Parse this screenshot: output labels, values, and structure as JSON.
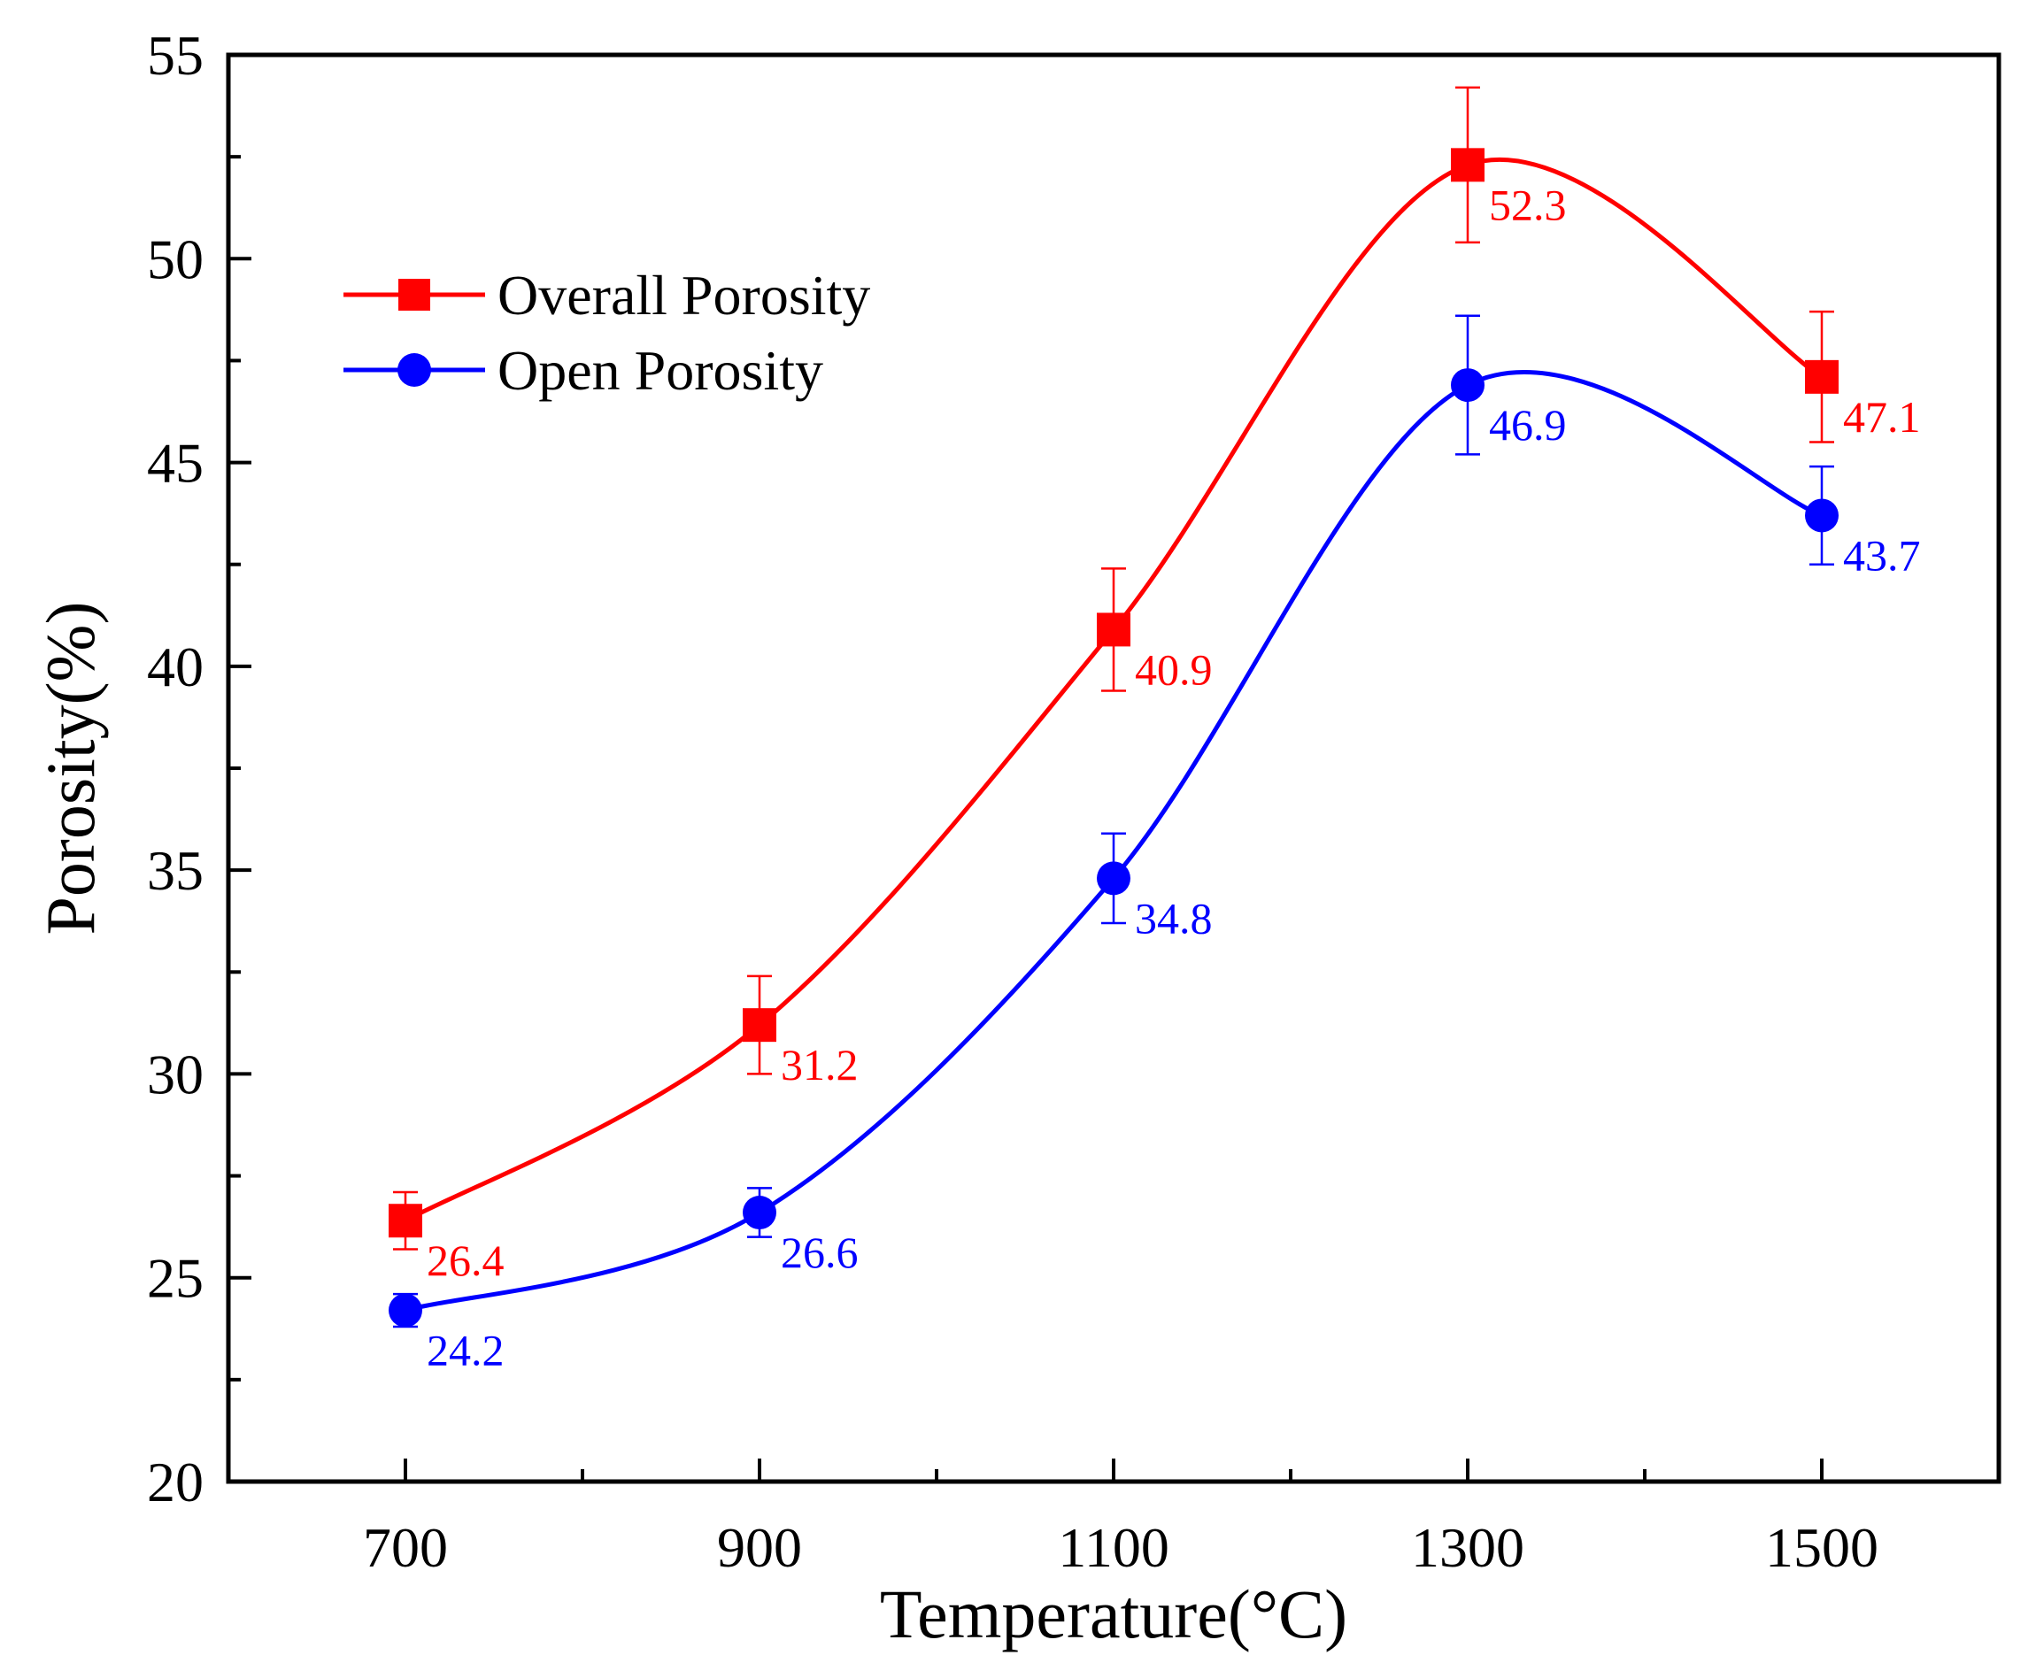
{
  "chart_data": {
    "type": "line",
    "title": "",
    "xlabel": "Temperature(°C)",
    "ylabel": "Porosity(%)",
    "xlim": [
      600,
      1600
    ],
    "ylim": [
      20,
      55
    ],
    "x_ticks": [
      700,
      900,
      1100,
      1300,
      1500
    ],
    "x_tick_labels": [
      "700",
      "900",
      "1100",
      "1300",
      "1500"
    ],
    "y_ticks": [
      20,
      25,
      30,
      35,
      40,
      45,
      50,
      55
    ],
    "y_tick_labels": [
      "20",
      "25",
      "30",
      "35",
      "40",
      "45",
      "50",
      "55"
    ],
    "legend_position": "top-left",
    "x": [
      700,
      900,
      1100,
      1300,
      1500
    ],
    "series": [
      {
        "name": "Overall Porosity",
        "color": "#ff0000",
        "marker": "square",
        "values": [
          26.4,
          31.2,
          40.9,
          52.3,
          47.1
        ],
        "labels": [
          "26.4",
          "31.2",
          "40.9",
          "52.3",
          "47.1"
        ],
        "error": [
          0.7,
          1.2,
          1.5,
          1.9,
          1.6
        ]
      },
      {
        "name": "Open Porosity",
        "color": "#0000ff",
        "marker": "circle",
        "values": [
          24.2,
          26.6,
          34.8,
          46.9,
          43.7
        ],
        "labels": [
          "24.2",
          "26.6",
          "34.8",
          "46.9",
          "43.7"
        ],
        "error": [
          0.4,
          0.6,
          1.1,
          1.7,
          1.2
        ]
      }
    ]
  }
}
